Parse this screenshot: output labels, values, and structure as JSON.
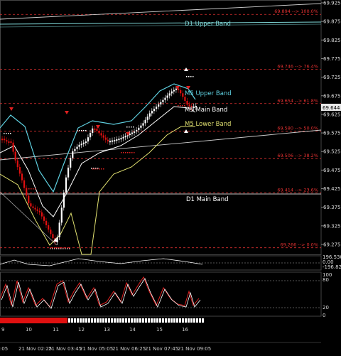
{
  "chart_data": {
    "type": "candlestick",
    "price_axis": {
      "labels": [
        "69.925",
        "69.875",
        "69.825",
        "69.775",
        "69.725",
        "69.675",
        "69.625",
        "69.575",
        "69.525",
        "69.475",
        "69.425",
        "69.375",
        "69.325",
        "69.275"
      ],
      "current_price": "69.644",
      "ylim": [
        69.25,
        69.93
      ]
    },
    "fib_levels": [
      {
        "price": 69.894,
        "label": "69.894 --> 100.0%"
      },
      {
        "price": 69.746,
        "label": "69.746 --> 76.4%"
      },
      {
        "price": 69.654,
        "label": "69.654 --> 61.8%"
      },
      {
        "price": 69.58,
        "label": "69.580 --> 50.0%"
      },
      {
        "price": 69.506,
        "label": "69.506 --> 38.2%"
      },
      {
        "price": 69.414,
        "label": "69.414 --> 23.6%"
      },
      {
        "price": 69.266,
        "label": "69.266 --> 0.0%"
      }
    ],
    "band_labels": {
      "d1_upper": "D1 Upper Band",
      "m5_upper": "M5 Upper Band",
      "m5_main": "M5 Main Band",
      "m5_lower": "M5 Lower Band",
      "d1_main": "D1 Main Band"
    },
    "oscillator_1": {
      "labels": [
        "196.5307",
        "0.00",
        "-196.8293"
      ]
    },
    "oscillator_2": {
      "labels": [
        "100",
        "80",
        "20",
        "0"
      ]
    },
    "hour_labels": [
      "9",
      "10",
      "11",
      "12",
      "13",
      "14",
      "15",
      "16"
    ],
    "time_labels": [
      ":05",
      "21 Nov 02:25",
      "21 Nov 03:45",
      "21 Nov 05:05",
      "21 Nov 06:25",
      "21 Nov 07:45",
      "21 Nov 09:05"
    ]
  },
  "colors": {
    "bull": "#ffffff",
    "bear": "#e01010",
    "fib": "#e03030",
    "d1_band": "#7fd8d8",
    "m5_upper": "#5fd0e0",
    "m5_lower": "#e0e070",
    "m5_main": "#ffffff"
  }
}
